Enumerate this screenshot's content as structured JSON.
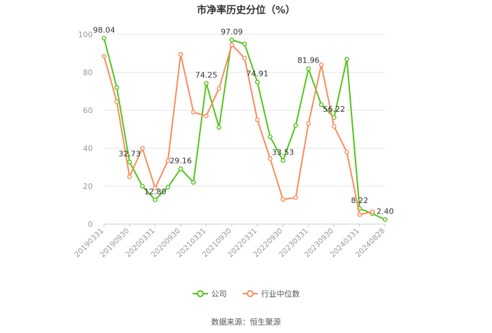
{
  "title": "市净率历史分位（%）",
  "source": "数据来源：恒生聚源",
  "colors": {
    "company": "#52c41a",
    "industry": "#fa8c5a",
    "grid": "#e6e6e6",
    "axis": "#999999"
  },
  "chart_data": {
    "type": "line",
    "title": "市净率历史分位（%）",
    "ylim": [
      0,
      100
    ],
    "yticks": [
      0,
      20,
      40,
      60,
      80,
      100
    ],
    "grid": true,
    "legend_position": "bottom",
    "x": [
      "20190331",
      "20190630",
      "20190930",
      "20191231",
      "20200331",
      "20200630",
      "20200930",
      "20201231",
      "20210331",
      "20210630",
      "20210930",
      "20211231",
      "20220331",
      "20220630",
      "20220930",
      "20221231",
      "20230331",
      "20230630",
      "20230930",
      "20231231",
      "20240331",
      "20240630",
      "20240828"
    ],
    "xtick_labels": [
      "20190331",
      "20190930",
      "20200331",
      "20200930",
      "20210331",
      "20210930",
      "20220331",
      "20220930",
      "20230331",
      "20230930",
      "20240331",
      "20240828"
    ],
    "series": [
      {
        "name": "公司",
        "values": [
          98.04,
          72,
          32.73,
          20,
          12.8,
          19.5,
          29.16,
          22,
          74.25,
          51,
          97.09,
          95,
          74.91,
          46,
          33.53,
          52,
          81.96,
          63,
          56.22,
          87,
          8.22,
          5.5,
          2.4
        ],
        "labels": {
          "0": "98.04",
          "2": "32.73",
          "4": "12.80",
          "6": "29.16",
          "8": "74.25",
          "10": "97.09",
          "12": "74.91",
          "14": "33.53",
          "16": "81.96",
          "18": "56.22",
          "20": "8.22",
          "22": "2.40"
        }
      },
      {
        "name": "行业中位数",
        "values": [
          88.5,
          64.5,
          25,
          40,
          19,
          33.5,
          89.5,
          59,
          57,
          71.5,
          94.5,
          87.5,
          55,
          34.5,
          13,
          14,
          53,
          84,
          51.5,
          38,
          5,
          6.5,
          null
        ]
      }
    ]
  }
}
